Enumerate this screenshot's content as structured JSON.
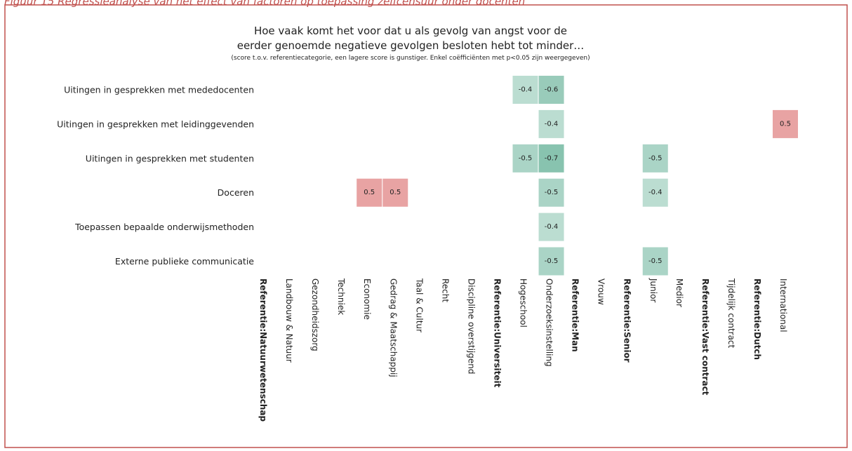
{
  "caption": "Figuur 15 Regressieanalyse van het effect van factoren op toepassing zelfcensuur onder docenten",
  "chart_data": {
    "type": "heatmap",
    "title": [
      "Hoe vaak komt het voor dat u als gevolg van angst voor de",
      "eerder genoemde negatieve gevolgen besloten hebt tot minder…"
    ],
    "subtitle": "(score t.o.v. referentiecategorie, een lagere score is gunstiger. Enkel coëfficiënten met p<0.05 zijn weergegeven)",
    "rows": [
      "Uitingen in gesprekken met mededocenten",
      "Uitingen in gesprekken met leidinggevenden",
      "Uitingen in gesprekken met studenten",
      "Doceren",
      "Toepassen bepaalde onderwijsmethoden",
      "Externe publieke communicatie"
    ],
    "categories": [
      "Referentie:Natuurwetenschap",
      "Landbouw & Natuur",
      "Gezondheidszorg",
      "Techniek",
      "Economie",
      "Gedrag & Maatschappij",
      "Taal & Cultur",
      "Recht",
      "Discipline overstijgend",
      "Referentie:Universiteit",
      "Hogeschool",
      "Onderzoeksinstelling",
      "Referentie:Man",
      "Vrouw",
      "Referentie:Senior",
      "Junior",
      "Medior",
      "Referentie:Vast contract",
      "Tijdelijk contract",
      "Referentie:Dutch",
      "International"
    ],
    "bold_categories": [
      0,
      9,
      12,
      14,
      17,
      19
    ],
    "values": [
      [
        null,
        null,
        null,
        null,
        null,
        null,
        null,
        null,
        null,
        null,
        -0.4,
        -0.6,
        null,
        null,
        null,
        null,
        null,
        null,
        null,
        null,
        null
      ],
      [
        null,
        null,
        null,
        null,
        null,
        null,
        null,
        null,
        null,
        null,
        null,
        -0.4,
        null,
        null,
        null,
        null,
        null,
        null,
        null,
        null,
        0.5
      ],
      [
        null,
        null,
        null,
        null,
        null,
        null,
        null,
        null,
        null,
        null,
        -0.5,
        -0.7,
        null,
        null,
        null,
        -0.5,
        null,
        null,
        null,
        null,
        null
      ],
      [
        null,
        null,
        null,
        null,
        0.5,
        0.5,
        null,
        null,
        null,
        null,
        null,
        -0.5,
        null,
        null,
        null,
        -0.4,
        null,
        null,
        null,
        null,
        null
      ],
      [
        null,
        null,
        null,
        null,
        null,
        null,
        null,
        null,
        null,
        null,
        null,
        -0.4,
        null,
        null,
        null,
        null,
        null,
        null,
        null,
        null,
        null
      ],
      [
        null,
        null,
        null,
        null,
        null,
        null,
        null,
        null,
        null,
        null,
        null,
        -0.5,
        null,
        null,
        null,
        -0.5,
        null,
        null,
        null,
        null,
        null
      ]
    ],
    "zlim": [
      -1,
      1
    ],
    "negative_color": "#55a98c",
    "positive_color": "#d14747"
  }
}
